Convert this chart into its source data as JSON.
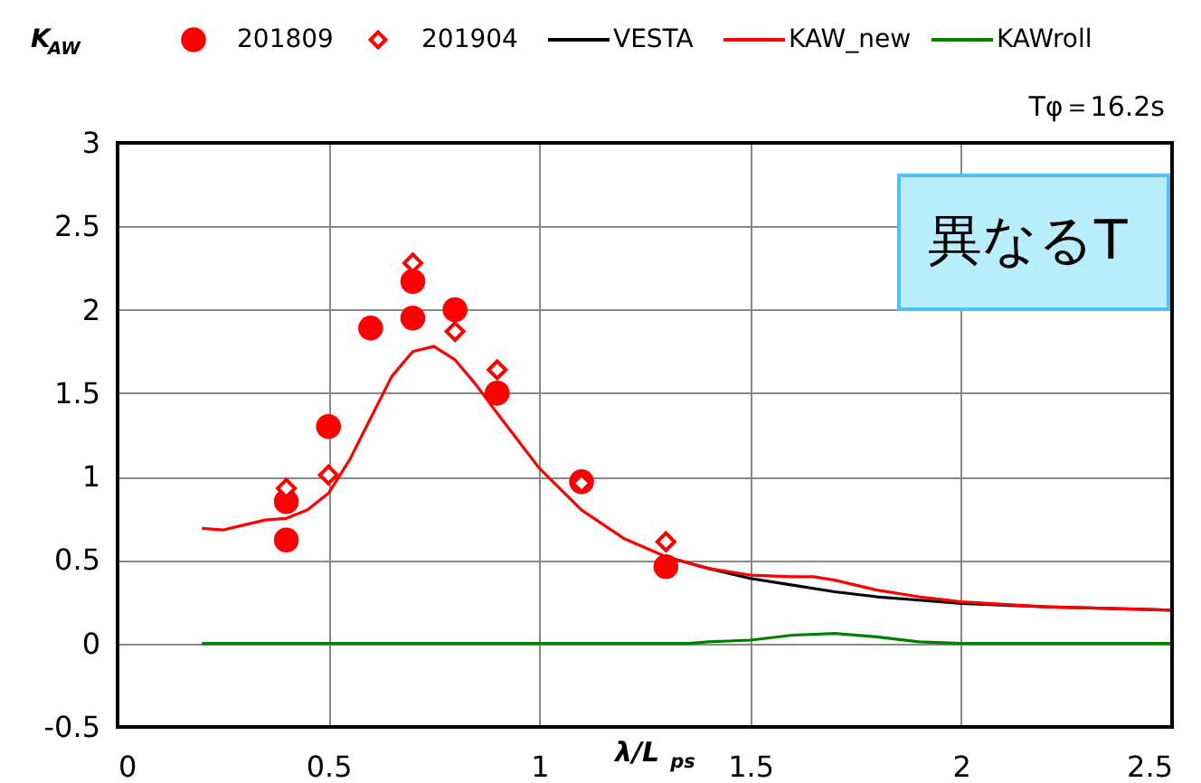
{
  "chart_data": {
    "type": "line",
    "ylabel": "K$_{AW}$",
    "xlabel": "λ/L$_{ps}$",
    "annotations": [
      "Tφ＝16.2s",
      "異なるT"
    ],
    "xlim": [
      0,
      2.5
    ],
    "xticks": [
      0,
      0.5,
      1,
      1.5,
      2,
      2.5
    ],
    "ylim": [
      -0.5,
      3
    ],
    "yticks": [
      -0.5,
      0,
      0.5,
      1,
      1.5,
      2,
      2.5,
      3
    ],
    "grid": true,
    "legend": "top",
    "series": [
      {
        "name": "201809",
        "type": "scatter",
        "marker": "circle",
        "color": "#ff0000",
        "x": [
          0.4,
          0.4,
          0.5,
          0.6,
          0.7,
          0.7,
          0.8,
          0.9,
          1.1,
          1.3
        ],
        "values": [
          0.85,
          0.62,
          1.3,
          1.89,
          2.17,
          1.95,
          2.0,
          1.5,
          0.97,
          0.46
        ]
      },
      {
        "name": "201904",
        "type": "scatter",
        "marker": "diamond",
        "color": "#ff0000",
        "x": [
          0.4,
          0.5,
          0.7,
          0.8,
          0.9,
          1.1,
          1.3
        ],
        "values": [
          0.93,
          1.01,
          2.28,
          1.87,
          1.64,
          0.96,
          0.61
        ]
      },
      {
        "name": "VESTA",
        "color": "#000000",
        "x": [
          1.3,
          1.4,
          1.5,
          1.6,
          1.7,
          1.8,
          1.9,
          2.0,
          2.2,
          2.5
        ],
        "values": [
          0.52,
          0.45,
          0.39,
          0.35,
          0.31,
          0.28,
          0.26,
          0.24,
          0.22,
          0.2
        ]
      },
      {
        "name": "KAW_new",
        "color": "#ff0000",
        "x": [
          0.2,
          0.25,
          0.3,
          0.35,
          0.4,
          0.45,
          0.5,
          0.55,
          0.6,
          0.65,
          0.7,
          0.75,
          0.8,
          0.85,
          0.9,
          1.0,
          1.1,
          1.2,
          1.3,
          1.4,
          1.5,
          1.6,
          1.65,
          1.7,
          1.8,
          1.9,
          2.0,
          2.2,
          2.5
        ],
        "values": [
          0.69,
          0.68,
          0.71,
          0.74,
          0.75,
          0.8,
          0.9,
          1.1,
          1.35,
          1.6,
          1.75,
          1.78,
          1.7,
          1.55,
          1.38,
          1.05,
          0.8,
          0.63,
          0.52,
          0.45,
          0.41,
          0.4,
          0.4,
          0.38,
          0.32,
          0.28,
          0.25,
          0.22,
          0.2
        ]
      },
      {
        "name": "KAWroll",
        "color": "#008000",
        "x": [
          0.2,
          1.35,
          1.4,
          1.5,
          1.6,
          1.7,
          1.8,
          1.9,
          2.0,
          2.5
        ],
        "values": [
          0,
          0,
          0.01,
          0.02,
          0.05,
          0.06,
          0.04,
          0.01,
          0,
          0
        ]
      }
    ]
  }
}
